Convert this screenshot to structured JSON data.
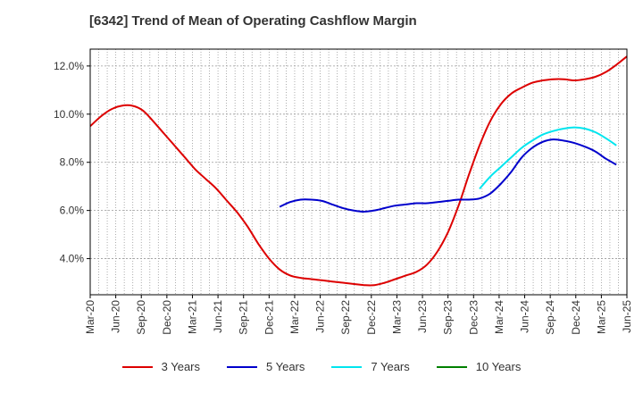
{
  "chart_data": {
    "type": "line",
    "title": "[6342]  Trend of Mean of Operating Cashflow Margin",
    "xlabel": "",
    "ylabel": "",
    "x_ticks": [
      "Mar-20",
      "Jun-20",
      "Sep-20",
      "Dec-20",
      "Mar-21",
      "Jun-21",
      "Sep-21",
      "Dec-21",
      "Mar-22",
      "Jun-22",
      "Sep-22",
      "Dec-22",
      "Mar-23",
      "Jun-23",
      "Sep-23",
      "Dec-23",
      "Mar-24",
      "Jun-24",
      "Sep-24",
      "Dec-24",
      "Mar-25",
      "Jun-25"
    ],
    "y_ticks": [
      "4.0%",
      "6.0%",
      "8.0%",
      "10.0%",
      "12.0%"
    ],
    "ylim": [
      2.5,
      12.7
    ],
    "y_tick_values": [
      4,
      6,
      8,
      10,
      12
    ],
    "grid": true,
    "legend_position": "bottom",
    "series": [
      {
        "name": "3 Years",
        "color": "#dd0000",
        "values": [
          9.5,
          9.9,
          10.2,
          10.35,
          10.35,
          10.15,
          9.7,
          9.2,
          8.7,
          8.2,
          7.7,
          7.3,
          6.9,
          6.4,
          5.9,
          5.3,
          4.6,
          4.0,
          3.55,
          3.3,
          3.2,
          3.15,
          3.1,
          3.05,
          3.0,
          2.95,
          2.9,
          2.9,
          3.0,
          3.15,
          3.3,
          3.45,
          3.75,
          4.3,
          5.1,
          6.2,
          7.5,
          8.7,
          9.7,
          10.4,
          10.85,
          11.1,
          11.3,
          11.4,
          11.45,
          11.45,
          11.4,
          11.45,
          11.55,
          11.75,
          12.05,
          12.4
        ]
      },
      {
        "name": "5 Years",
        "color": "#0000cc",
        "offset": 18,
        "values": [
          6.15,
          6.35,
          6.45,
          6.45,
          6.4,
          6.25,
          6.1,
          6.0,
          5.95,
          6.0,
          6.1,
          6.2,
          6.25,
          6.3,
          6.3,
          6.35,
          6.4,
          6.45,
          6.45,
          6.5,
          6.7,
          7.1,
          7.6,
          8.2,
          8.6,
          8.85,
          8.95,
          8.9,
          8.8,
          8.65,
          8.45,
          8.15,
          7.9
        ]
      },
      {
        "name": "7 Years",
        "color": "#00e5ee",
        "offset": 37,
        "values": [
          6.9,
          7.4,
          7.8,
          8.2,
          8.6,
          8.9,
          9.15,
          9.3,
          9.4,
          9.45,
          9.4,
          9.25,
          9.0,
          8.7
        ]
      },
      {
        "name": "10 Years",
        "color": "#008000",
        "values": []
      }
    ]
  }
}
